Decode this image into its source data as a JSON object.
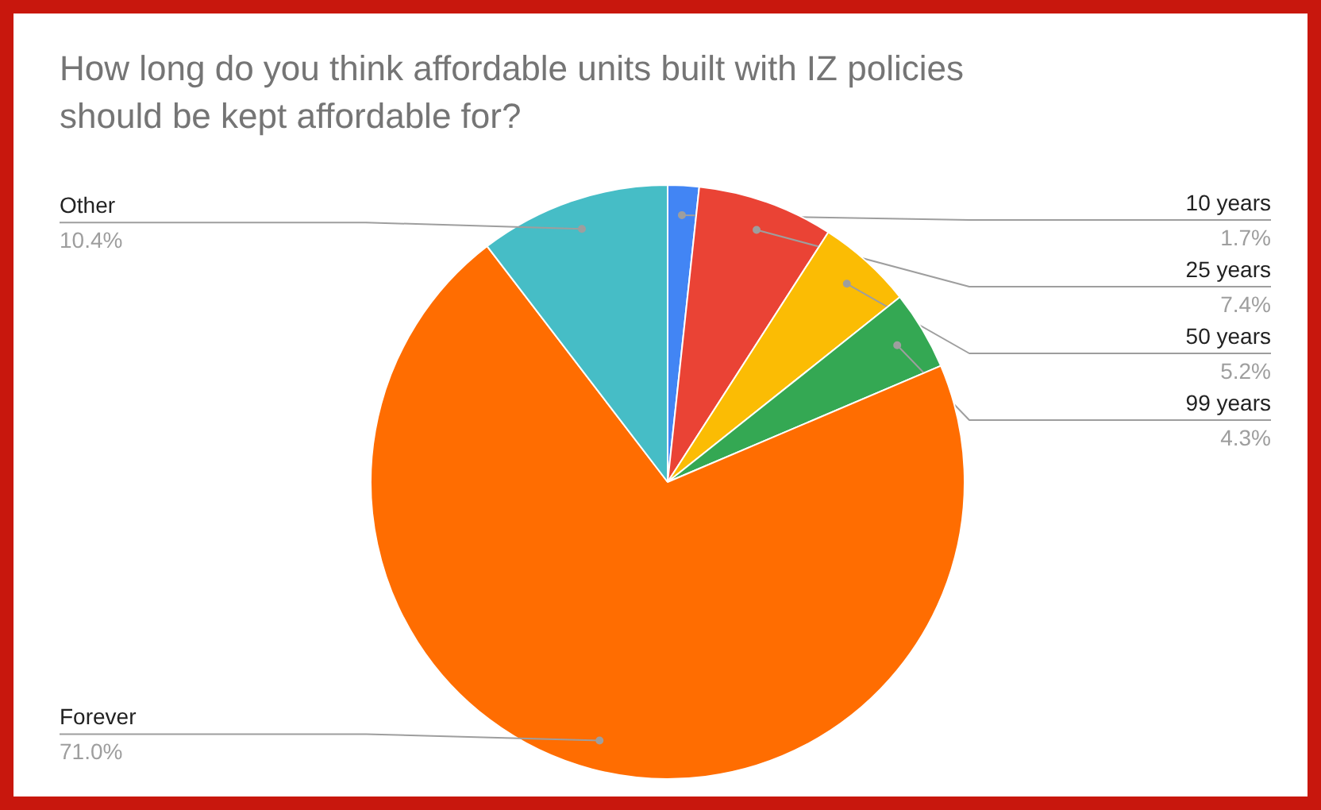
{
  "chart_data": {
    "type": "pie",
    "title": "How long do you think affordable units built with IZ policies should be kept affordable for?",
    "categories": [
      "10 years",
      "25 years",
      "50 years",
      "99 years",
      "Forever",
      "Other"
    ],
    "values": [
      1.7,
      7.4,
      5.2,
      4.3,
      71.0,
      10.4
    ],
    "value_labels": [
      "1.7%",
      "7.4%",
      "5.2%",
      "4.3%",
      "71.0%",
      "10.4%"
    ],
    "colors": [
      "#4285f4",
      "#ea4335",
      "#fbbc04",
      "#34a853",
      "#ff6d01",
      "#46bdc6"
    ]
  }
}
